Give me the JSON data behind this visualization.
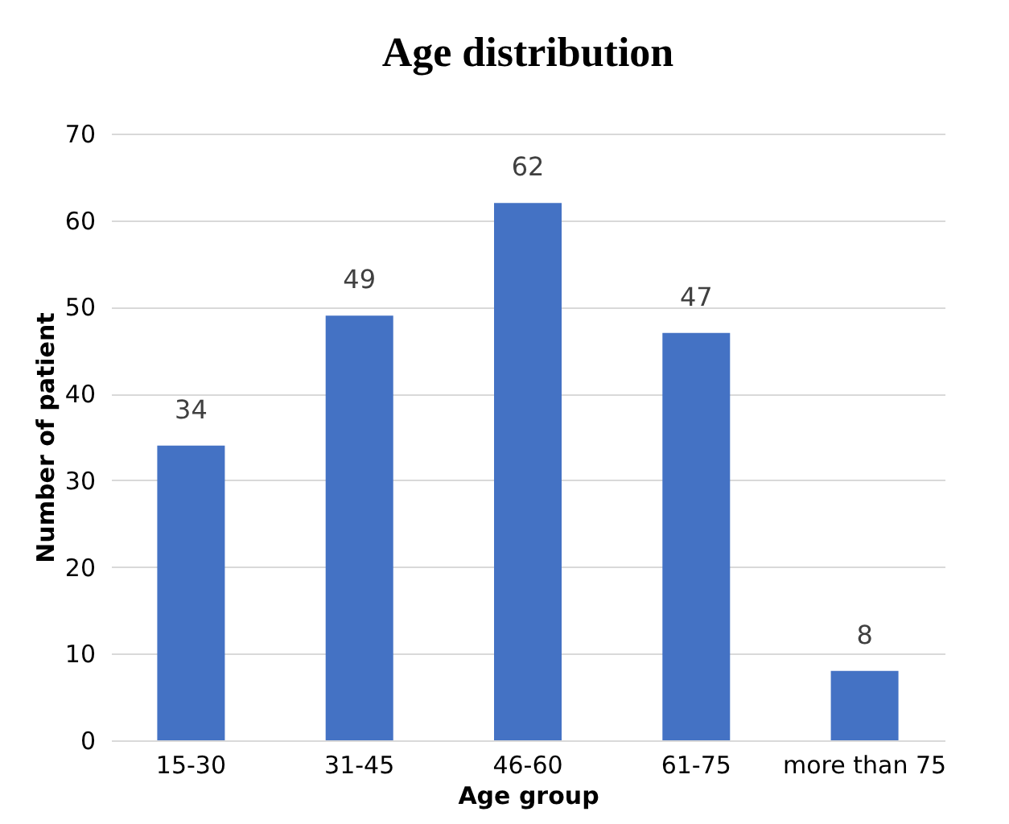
{
  "chart_data": {
    "type": "bar",
    "title": "Age distribution",
    "xlabel": "Age group",
    "ylabel": "Number of patient",
    "categories": [
      "15-30",
      "31-45",
      "46-60",
      "61-75",
      "more than 75"
    ],
    "values": [
      34,
      49,
      62,
      47,
      8
    ],
    "color": "#4472c4",
    "ylim": [
      0,
      70
    ],
    "yticks": [
      0,
      10,
      20,
      30,
      40,
      50,
      60,
      70
    ],
    "grid": "y",
    "data_labels": true
  }
}
